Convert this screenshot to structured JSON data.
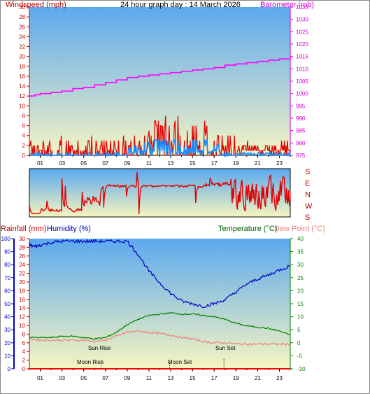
{
  "title": "24 hour graph day : 14 March 2026",
  "chart_data": [
    {
      "type": "line",
      "name": "wind-barometer",
      "left_axis_label": "Windspeed (mph)",
      "right_axis_label": "Barometer (mb)",
      "left_ticks": [
        0,
        2,
        4,
        6,
        8,
        10,
        12,
        14,
        16,
        18,
        20,
        22,
        24,
        26,
        28,
        30
      ],
      "left_ylim": [
        0,
        30
      ],
      "right_ticks": [
        975,
        980,
        985,
        990,
        995,
        1000,
        1005,
        1010,
        1015,
        1020,
        1025,
        1030,
        1035
      ],
      "right_ylim": [
        975,
        1035
      ],
      "x_ticks": [
        "01",
        "03",
        "05",
        "07",
        "09",
        "11",
        "13",
        "15",
        "17",
        "19",
        "21",
        "23"
      ],
      "xlim": [
        0,
        24
      ],
      "barometer": {
        "x": [
          0,
          0.5,
          1,
          2,
          3,
          4,
          5,
          6,
          7,
          8,
          9,
          10,
          11,
          12,
          13,
          14,
          15,
          16,
          17,
          18,
          19,
          20,
          21,
          22,
          23,
          24
        ],
        "y": [
          999,
          999.5,
          1000,
          1000.5,
          1001,
          1002,
          1002.5,
          1003.5,
          1004.5,
          1005.5,
          1006.5,
          1007,
          1007.5,
          1008,
          1008.5,
          1009,
          1009.5,
          1010,
          1010.5,
          1011.5,
          1012,
          1012.5,
          1013,
          1013.5,
          1014,
          1015
        ]
      },
      "gust_max": 8,
      "gust_level_evening": 1
    },
    {
      "type": "line",
      "name": "wind-direction",
      "dir_labels": [
        "S",
        "E",
        "N",
        "W",
        "S"
      ]
    },
    {
      "type": "line",
      "name": "temp-humidity",
      "left_label_rain": "Rainfall (mm)",
      "left_label_hum": "Humidity (%)",
      "right_label_temp": "Temperature (°C)",
      "right_label_dew": "Dew Point (°C)",
      "rain_ticks": [
        0,
        2,
        4,
        6,
        8,
        10,
        12,
        14,
        16,
        18,
        20,
        22,
        24,
        26,
        28,
        30
      ],
      "rain_ylim": [
        0,
        30
      ],
      "hum_ticks": [
        0,
        10,
        20,
        30,
        40,
        50,
        60,
        70,
        80,
        90,
        100
      ],
      "hum_ylim": [
        0,
        100
      ],
      "temp_ticks": [
        -10,
        -5,
        0,
        5,
        10,
        15,
        20,
        25,
        30,
        35,
        40
      ],
      "temp_ylim": [
        -10,
        40
      ],
      "x_ticks": [
        "01",
        "03",
        "05",
        "07",
        "09",
        "11",
        "13",
        "15",
        "17",
        "19",
        "21",
        "23"
      ],
      "xlim": [
        0,
        24
      ],
      "humidity": {
        "x": [
          0,
          0.5,
          1,
          2,
          3,
          4,
          5,
          6,
          7,
          8,
          9,
          10,
          11,
          12,
          13,
          14,
          15,
          16,
          17,
          18,
          19,
          20,
          21,
          22,
          23,
          24
        ],
        "y": [
          95,
          94,
          95,
          97,
          98,
          98,
          98,
          98,
          98,
          98,
          98,
          88,
          75,
          66,
          58,
          52,
          50,
          48,
          50,
          53,
          59,
          65,
          69,
          72,
          76,
          79
        ]
      },
      "temperature": {
        "x": [
          0,
          1,
          2,
          3,
          4,
          5,
          6,
          7,
          8,
          9,
          10,
          11,
          12,
          13,
          14,
          15,
          16,
          17,
          18,
          19,
          20,
          21,
          22,
          23,
          24
        ],
        "y": [
          2,
          2,
          2,
          2.5,
          2.5,
          2,
          1.5,
          2,
          4,
          7,
          9,
          10.5,
          11,
          11.5,
          11,
          11,
          10.5,
          10,
          9,
          7.5,
          6.5,
          6,
          5.5,
          4.5,
          3
        ]
      },
      "dewpoint": {
        "x": [
          0,
          1,
          2,
          3,
          4,
          5,
          6,
          7,
          8,
          9,
          10,
          11,
          12,
          13,
          14,
          15,
          16,
          17,
          18,
          19,
          20,
          21,
          22,
          23,
          24
        ],
        "y": [
          1.5,
          1,
          1,
          1,
          1,
          1,
          0.5,
          1,
          2.5,
          4,
          4.5,
          4,
          3.5,
          3,
          2,
          1.5,
          0.5,
          0,
          0,
          -0.5,
          -0.5,
          -0.5,
          -0.5,
          -0.5,
          -0.5
        ]
      },
      "annotations": {
        "sun_rise": "Sun Rise",
        "sun_set": "Sun Set",
        "moon_rise": "Moon Rise",
        "moon_set": "Moon Set"
      },
      "events": {
        "sun_rise": 6.3,
        "sun_set": 17.9,
        "moon_rise": 6.6,
        "moon_set": 12.9
      }
    }
  ],
  "colors": {
    "wind": "#e00000",
    "wind_avg": "#1a8cff",
    "barometer": "#ff00ff",
    "humidity": "#0000c0",
    "temperature": "#008000",
    "dewpoint": "#f08080",
    "rain": "#ff0000",
    "bg_top": "#5aa8ee",
    "bg_bottom": "#f7f5c0"
  }
}
